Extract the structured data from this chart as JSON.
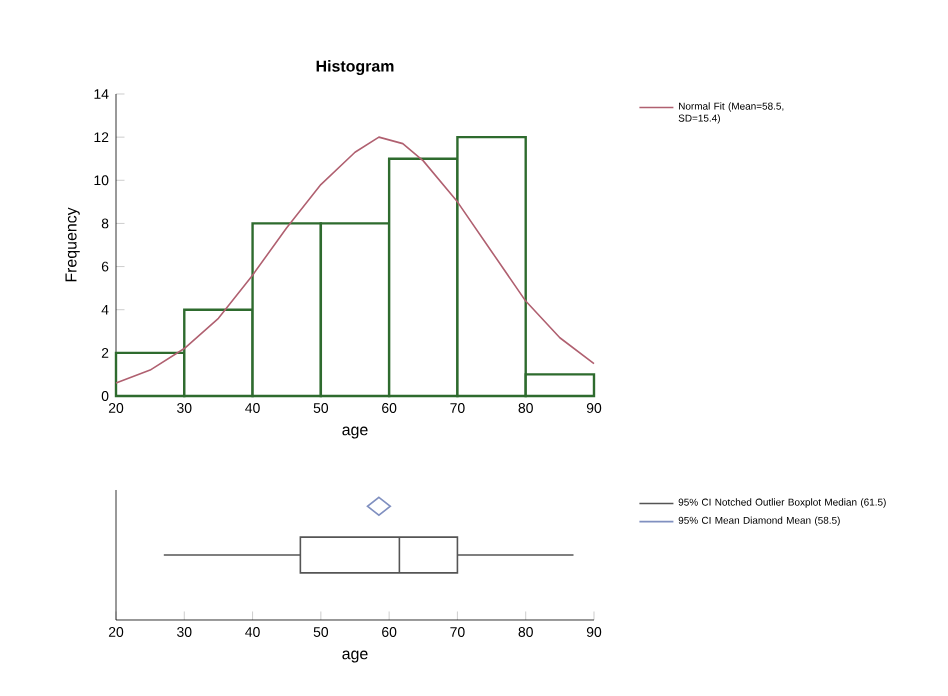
{
  "chart_data": [
    {
      "type": "histogram",
      "title": "Histogram",
      "xlabel": "age",
      "ylabel": "Frequency",
      "bins": [
        20,
        30,
        40,
        50,
        60,
        70,
        80,
        90
      ],
      "values": [
        2,
        4,
        8,
        8,
        11,
        12,
        1
      ],
      "color": "#ffffff",
      "xlim": [
        20,
        90
      ],
      "ylim": [
        0,
        14
      ],
      "xticks": [
        20,
        30,
        40,
        50,
        60,
        70,
        80,
        90
      ],
      "yticks": [
        0,
        2,
        4,
        6,
        8,
        10,
        12,
        14
      ],
      "legend": "right",
      "series": [
        {
          "name": "Normal Fit (Mean=58.5, SD=15.4)",
          "type": "line",
          "color": "#b06070",
          "x": [
            20,
            25,
            30,
            35,
            40,
            45,
            50,
            55,
            58.5,
            62,
            65,
            70,
            75,
            80,
            85,
            90
          ],
          "values": [
            0.6,
            1.2,
            2.2,
            3.6,
            5.6,
            7.8,
            9.8,
            11.3,
            12,
            11.7,
            10.9,
            9.0,
            6.7,
            4.4,
            2.7,
            1.5
          ]
        }
      ]
    },
    {
      "type": "box",
      "orientation": "horizontal",
      "xlabel": "age",
      "categories": [
        null
      ],
      "xlim": [
        20,
        90
      ],
      "xticks": [
        20,
        30,
        40,
        50,
        60,
        70,
        80,
        90
      ],
      "legend": "right",
      "series": [
        {
          "name": "95% CI Notched Outlier Boxplot Median (61.5)",
          "color": "#555555",
          "boxes": [
            {
              "low": 27,
              "q1": 47,
              "median": 61.5,
              "q3": 70,
              "high": 87
            }
          ]
        },
        {
          "name": "95% CI Mean Diamond Mean (58.5)",
          "type": "scatter",
          "marker": "diamond",
          "color": "#8090c0",
          "values": [
            58.5
          ]
        }
      ]
    }
  ]
}
